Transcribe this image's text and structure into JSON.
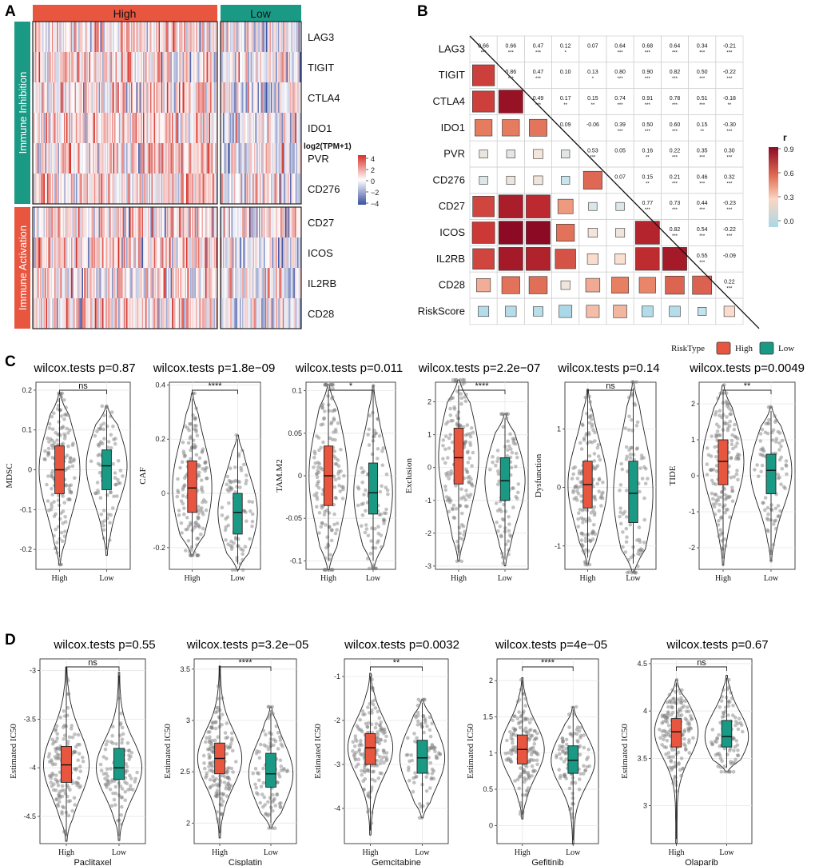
{
  "panel_labels": {
    "a": "A",
    "b": "B",
    "c": "C",
    "d": "D"
  },
  "colors": {
    "high": "#e8563f",
    "low": "#1a9a85",
    "heat_high": "#d73027",
    "heat_low": "#3a4fa0",
    "corr_high": "#a50f2a",
    "corr_mid": "#f4a582",
    "corr_low": "#a8d8e6",
    "riskscore": "#b22222"
  },
  "heatmap": {
    "group_high": "High",
    "group_low": "Low",
    "section_inhibition": "Immune Inhibition",
    "section_activation": "Immune Activation",
    "genes_inhibition": [
      "LAG3",
      "TIGIT",
      "CTLA4",
      "IDO1",
      "PVR",
      "CD276"
    ],
    "genes_activation": [
      "CD27",
      "ICOS",
      "IL2RB",
      "CD28"
    ],
    "legend_title": "log2(TPM+1)",
    "legend_ticks": [
      "4",
      "2",
      "0",
      "−2",
      "−4"
    ]
  },
  "correlation": {
    "variables": [
      "LAG3",
      "TIGIT",
      "CTLA4",
      "IDO1",
      "PVR",
      "CD276",
      "CD27",
      "ICOS",
      "IL2RB",
      "CD28",
      "RiskScore"
    ],
    "upper": [
      [
        [
          "0.66",
          "***"
        ],
        [
          "0.66",
          "***"
        ],
        [
          "0.47",
          "***"
        ],
        [
          "0.12",
          "*"
        ],
        [
          "0.07",
          ""
        ],
        [
          "0.64",
          "***"
        ],
        [
          "0.68",
          "***"
        ],
        [
          "0.64",
          "***"
        ],
        [
          "0.34",
          "***"
        ],
        [
          "-0.21",
          "***"
        ]
      ],
      [
        [
          "0.86",
          "***"
        ],
        [
          "0.47",
          "***"
        ],
        [
          "0.10",
          ""
        ],
        [
          "0.13",
          "*"
        ],
        [
          "0.80",
          "***"
        ],
        [
          "0.90",
          "***"
        ],
        [
          "0.82",
          "***"
        ],
        [
          "0.50",
          "***"
        ],
        [
          "-0.22",
          "***"
        ]
      ],
      [
        [
          "0.49",
          "***"
        ],
        [
          "0.17",
          "**"
        ],
        [
          "0.15",
          "**"
        ],
        [
          "0.74",
          "***"
        ],
        [
          "0.91",
          "***"
        ],
        [
          "0.78",
          "***"
        ],
        [
          "0.51",
          "***"
        ],
        [
          "-0.18",
          "**"
        ]
      ],
      [
        [
          "0.09",
          ""
        ],
        [
          "-0.06",
          ""
        ],
        [
          "0.39",
          "***"
        ],
        [
          "0.50",
          "***"
        ],
        [
          "0.60",
          "***"
        ],
        [
          "0.15",
          "**"
        ],
        [
          "-0.30",
          "***"
        ]
      ],
      [
        [
          "0.53",
          "***"
        ],
        [
          "0.05",
          ""
        ],
        [
          "0.16",
          "**"
        ],
        [
          "0.22",
          "***"
        ],
        [
          "0.35",
          "***"
        ],
        [
          "0.30",
          "***"
        ]
      ],
      [
        [
          "0.07",
          ""
        ],
        [
          "0.15",
          "**"
        ],
        [
          "0.21",
          "***"
        ],
        [
          "0.46",
          "***"
        ],
        [
          "0.32",
          "***"
        ]
      ],
      [
        [
          "0.77",
          "***"
        ],
        [
          "0.73",
          "***"
        ],
        [
          "0.44",
          "***"
        ],
        [
          "-0.23",
          "***"
        ]
      ],
      [
        [
          "0.82",
          "***"
        ],
        [
          "0.54",
          "***"
        ],
        [
          "-0.22",
          "***"
        ]
      ],
      [
        [
          "0.55",
          "***"
        ],
        [
          "-0.09",
          ""
        ]
      ],
      [
        [
          "0.22",
          "***"
        ]
      ]
    ],
    "lower": [
      [
        0.66
      ],
      [
        0.66,
        0.86
      ],
      [
        0.47,
        0.47,
        0.49
      ],
      [
        0.12,
        0.1,
        0.17,
        0.09
      ],
      [
        0.07,
        0.13,
        0.15,
        -0.06,
        0.53
      ],
      [
        0.64,
        0.8,
        0.74,
        0.39,
        0.05,
        0.07
      ],
      [
        0.68,
        0.9,
        0.91,
        0.5,
        0.16,
        0.15,
        0.77
      ],
      [
        0.64,
        0.82,
        0.78,
        0.6,
        0.22,
        0.21,
        0.73,
        0.82
      ],
      [
        0.34,
        0.5,
        0.51,
        0.15,
        0.35,
        0.46,
        0.44,
        0.54,
        0.55
      ],
      [
        -0.21,
        -0.22,
        -0.18,
        -0.3,
        0.3,
        0.32,
        -0.23,
        -0.22,
        -0.09,
        0.22
      ]
    ],
    "legend_title": "r",
    "legend_ticks": [
      "0.9",
      "0.6",
      "0.3",
      "0.0"
    ]
  },
  "legend_risk": {
    "title": "RiskType",
    "high": "High",
    "low": "Low"
  },
  "chart_data": [
    {
      "type": "violin",
      "panel": "C",
      "title": "wilcox.tests p=0.87",
      "ylabel": "MDSC",
      "categories": [
        "High",
        "Low"
      ],
      "ylim": [
        -0.25,
        0.22
      ],
      "yticks": [
        -0.2,
        -0.1,
        0.0,
        0.1,
        0.2
      ],
      "signif": "ns",
      "boxes": [
        {
          "q1": -0.06,
          "median": 0.0,
          "q3": 0.06,
          "wlo": -0.22,
          "whi": 0.18
        },
        {
          "q1": -0.05,
          "median": 0.01,
          "q3": 0.05,
          "wlo": -0.2,
          "whi": 0.15
        }
      ]
    },
    {
      "type": "violin",
      "panel": "C",
      "title": "wilcox.tests p=1.8e−09",
      "ylabel": "CAF",
      "categories": [
        "High",
        "Low"
      ],
      "ylim": [
        -0.28,
        0.41
      ],
      "yticks": [
        -0.2,
        0.0,
        0.2,
        0.4
      ],
      "signif": "****",
      "boxes": [
        {
          "q1": -0.07,
          "median": 0.02,
          "q3": 0.12,
          "wlo": -0.2,
          "whi": 0.35
        },
        {
          "q1": -0.15,
          "median": -0.07,
          "q3": 0.0,
          "wlo": -0.26,
          "whi": 0.2
        }
      ]
    },
    {
      "type": "violin",
      "panel": "C",
      "title": "wilcox.tests p=0.011",
      "ylabel": "TAM.M2",
      "categories": [
        "High",
        "Low"
      ],
      "ylim": [
        -0.11,
        0.11
      ],
      "yticks": [
        -0.1,
        -0.05,
        0.0,
        0.05,
        0.1
      ],
      "signif": "*",
      "boxes": [
        {
          "q1": -0.035,
          "median": 0.0,
          "q3": 0.035,
          "wlo": -0.1,
          "whi": 0.1
        },
        {
          "q1": -0.045,
          "median": -0.02,
          "q3": 0.015,
          "wlo": -0.1,
          "whi": 0.1
        }
      ]
    },
    {
      "type": "violin",
      "panel": "C",
      "title": "wilcox.tests p=2.2e−07",
      "ylabel": "Exclusion",
      "categories": [
        "High",
        "Low"
      ],
      "ylim": [
        -3.1,
        2.6
      ],
      "yticks": [
        -3,
        -2,
        -1,
        0,
        1,
        2
      ],
      "signif": "****",
      "boxes": [
        {
          "q1": -0.5,
          "median": 0.3,
          "q3": 1.2,
          "wlo": -2.6,
          "whi": 2.5
        },
        {
          "q1": -1.0,
          "median": -0.4,
          "q3": 0.3,
          "wlo": -2.8,
          "whi": 1.5
        }
      ]
    },
    {
      "type": "violin",
      "panel": "C",
      "title": "wilcox.tests p=0.14",
      "ylabel": "Dysfunction",
      "categories": [
        "High",
        "Low"
      ],
      "ylim": [
        -1.4,
        1.8
      ],
      "yticks": [
        -1,
        0,
        1
      ],
      "signif": "ns",
      "boxes": [
        {
          "q1": -0.35,
          "median": 0.05,
          "q3": 0.45,
          "wlo": -1.2,
          "whi": 1.6
        },
        {
          "q1": -0.6,
          "median": -0.1,
          "q3": 0.45,
          "wlo": -1.3,
          "whi": 1.7
        }
      ]
    },
    {
      "type": "violin",
      "panel": "C",
      "title": "wilcox.tests p=0.0049",
      "ylabel": "TIDE",
      "categories": [
        "High",
        "Low"
      ],
      "ylim": [
        -2.6,
        2.6
      ],
      "yticks": [
        -2,
        -1,
        0,
        1,
        2
      ],
      "signif": "**",
      "boxes": [
        {
          "q1": -0.25,
          "median": 0.4,
          "q3": 1.0,
          "wlo": -2.3,
          "whi": 2.4
        },
        {
          "q1": -0.5,
          "median": 0.15,
          "q3": 0.6,
          "wlo": -2.2,
          "whi": 1.8
        }
      ]
    },
    {
      "type": "violin",
      "panel": "D",
      "title": "wilcox.tests p=0.55",
      "ylabel": "Estimated IC50",
      "xlabel": "Paclitaxel",
      "categories": [
        "High",
        "Low"
      ],
      "ylim": [
        -4.78,
        -2.88
      ],
      "yticks": [
        -4.5,
        -4.0,
        -3.5,
        -3.0
      ],
      "signif": "ns",
      "boxes": [
        {
          "q1": -4.15,
          "median": -3.97,
          "q3": -3.78,
          "wlo": -4.7,
          "whi": -3.0
        },
        {
          "q1": -4.12,
          "median": -4.0,
          "q3": -3.8,
          "wlo": -4.7,
          "whi": -3.05
        }
      ]
    },
    {
      "type": "violin",
      "panel": "D",
      "title": "wilcox.tests p=3.2e−05",
      "ylabel": "Estimated IC50",
      "xlabel": "Cisplatin",
      "categories": [
        "High",
        "Low"
      ],
      "ylim": [
        1.8,
        3.6
      ],
      "yticks": [
        2.0,
        2.5,
        3.0,
        3.5
      ],
      "signif": "****",
      "boxes": [
        {
          "q1": 2.48,
          "median": 2.63,
          "q3": 2.78,
          "wlo": 1.9,
          "whi": 3.5
        },
        {
          "q1": 2.35,
          "median": 2.48,
          "q3": 2.68,
          "wlo": 2.0,
          "whi": 3.1
        }
      ]
    },
    {
      "type": "violin",
      "panel": "D",
      "title": "wilcox.tests p=0.0032",
      "ylabel": "Estimated IC50",
      "xlabel": "Gemcitabine",
      "categories": [
        "High",
        "Low"
      ],
      "ylim": [
        -4.8,
        -0.6
      ],
      "yticks": [
        -4,
        -3,
        -2,
        -1
      ],
      "signif": "**",
      "boxes": [
        {
          "q1": -3.0,
          "median": -2.62,
          "q3": -2.3,
          "wlo": -4.5,
          "whi": -1.0
        },
        {
          "q1": -3.2,
          "median": -2.85,
          "q3": -2.45,
          "wlo": -4.1,
          "whi": -1.6
        }
      ]
    },
    {
      "type": "violin",
      "panel": "D",
      "title": "wilcox.tests p=4e−05",
      "ylabel": "Estimated IC50",
      "xlabel": "Gefitinib",
      "categories": [
        "High",
        "Low"
      ],
      "ylim": [
        -0.25,
        2.3
      ],
      "yticks": [
        0.0,
        0.5,
        1.0,
        1.5,
        2.0
      ],
      "signif": "****",
      "boxes": [
        {
          "q1": 0.85,
          "median": 1.05,
          "q3": 1.25,
          "wlo": 0.15,
          "whi": 2.0
        },
        {
          "q1": 0.72,
          "median": 0.9,
          "q3": 1.1,
          "wlo": -0.2,
          "whi": 1.6
        }
      ]
    },
    {
      "type": "violin",
      "panel": "D",
      "title": "wilcox.tests p=0.67",
      "ylabel": "Estimated IC50",
      "xlabel": "Olaparib",
      "categories": [
        "High",
        "Low"
      ],
      "ylim": [
        2.6,
        4.55
      ],
      "yticks": [
        3.0,
        3.5,
        4.0,
        4.5
      ],
      "signif": "ns",
      "boxes": [
        {
          "q1": 3.62,
          "median": 3.78,
          "q3": 3.92,
          "wlo": 2.65,
          "whi": 4.3
        },
        {
          "q1": 3.62,
          "median": 3.73,
          "q3": 3.9,
          "wlo": 3.4,
          "whi": 4.35
        }
      ]
    }
  ]
}
